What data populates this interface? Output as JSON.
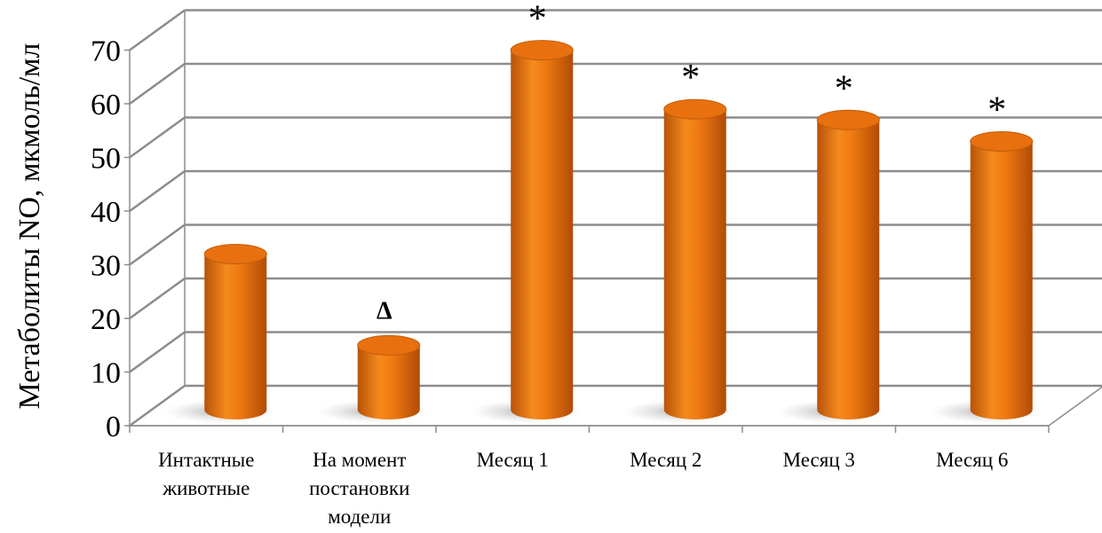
{
  "chart_data": {
    "type": "bar",
    "style": "3d-cylinder",
    "ylabel": "Метаболиты NO, мкмоль/мл",
    "xlabel": "",
    "title": "",
    "ylim": [
      0,
      70
    ],
    "yticks": [
      "0",
      "10",
      "20",
      "30",
      "40",
      "50",
      "60",
      "70"
    ],
    "grid": true,
    "categories": [
      [
        "Интактные",
        "животные"
      ],
      [
        "На момент",
        "постановки",
        "модели"
      ],
      [
        "Месяц 1"
      ],
      [
        "Месяц 2"
      ],
      [
        "Месяц 3"
      ],
      [
        "Месяц 6"
      ]
    ],
    "values": [
      29,
      12,
      67,
      56,
      54,
      50
    ],
    "annotations": [
      "",
      "Δ",
      "*",
      "*",
      "*",
      "*"
    ],
    "colors": {
      "bar": "#e8700f",
      "bar_light": "#f7921e",
      "bar_dark": "#a84a05",
      "grid": "#8c8c8c",
      "text": "#000000"
    }
  }
}
